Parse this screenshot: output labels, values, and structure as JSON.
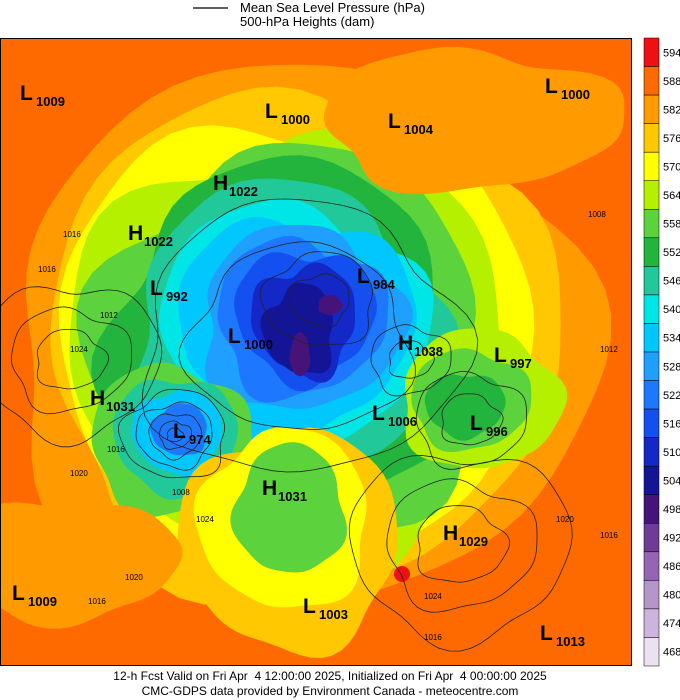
{
  "header": {
    "line_1": "Mean Sea Level Pressure (hPa)",
    "line_2": "500-hPa Heights (dam)"
  },
  "colorbar": [
    {
      "label": 594,
      "color": "#ee1111"
    },
    {
      "label": 588,
      "color": "#ff6a00"
    },
    {
      "label": 582,
      "color": "#ff9a00"
    },
    {
      "label": 576,
      "color": "#ffc800"
    },
    {
      "label": 570,
      "color": "#ffff00"
    },
    {
      "label": 564,
      "color": "#b4f000"
    },
    {
      "label": 558,
      "color": "#5cd23c"
    },
    {
      "label": 552,
      "color": "#22b43c"
    },
    {
      "label": 546,
      "color": "#20c89a"
    },
    {
      "label": 540,
      "color": "#00e6e6"
    },
    {
      "label": 534,
      "color": "#00c8ff"
    },
    {
      "label": 528,
      "color": "#1fa0ff"
    },
    {
      "label": 522,
      "color": "#1e78ff"
    },
    {
      "label": 516,
      "color": "#1450f0"
    },
    {
      "label": 510,
      "color": "#1428c8"
    },
    {
      "label": 504,
      "color": "#141496"
    },
    {
      "label": 498,
      "color": "#461478"
    },
    {
      "label": 492,
      "color": "#6e3c96"
    },
    {
      "label": 486,
      "color": "#9664b4"
    },
    {
      "label": 480,
      "color": "#b496c8"
    },
    {
      "label": 474,
      "color": "#cdb4dc"
    },
    {
      "label": 468,
      "color": "#ebe1f0"
    }
  ],
  "centers": [
    {
      "type": "L",
      "value": "1009"
    },
    {
      "type": "L",
      "value": "1000"
    },
    {
      "type": "L",
      "value": "1004"
    },
    {
      "type": "L",
      "value": "1000"
    },
    {
      "type": "H",
      "value": "1022"
    },
    {
      "type": "H",
      "value": "1022"
    },
    {
      "type": "L",
      "value": "992"
    },
    {
      "type": "L",
      "value": "1000"
    },
    {
      "type": "L",
      "value": "984"
    },
    {
      "type": "H",
      "value": "1038"
    },
    {
      "type": "L",
      "value": "997"
    },
    {
      "type": "H",
      "value": "1031"
    },
    {
      "type": "L",
      "value": "974"
    },
    {
      "type": "L",
      "value": "1006"
    },
    {
      "type": "L",
      "value": "996"
    },
    {
      "type": "H",
      "value": "1031"
    },
    {
      "type": "H",
      "value": "1029"
    },
    {
      "type": "L",
      "value": "1009"
    },
    {
      "type": "L",
      "value": "1003"
    },
    {
      "type": "L",
      "value": "1013"
    }
  ],
  "isobar_labels": [
    "1016",
    "1016",
    "1012",
    "1024",
    "1020",
    "1016",
    "1008",
    "1024",
    "1020",
    "1016",
    "1024",
    "1016",
    "1020",
    "1016",
    "1012",
    "1008"
  ],
  "footer": {
    "line_1": "12-h Fcst Valid on Fri Apr  4 12:00:00 2025, Initialized on Fri Apr  4 00:00:00 2025",
    "line_2": "CMC-GDPS data provided by Environment Canada - meteocentre.com"
  }
}
